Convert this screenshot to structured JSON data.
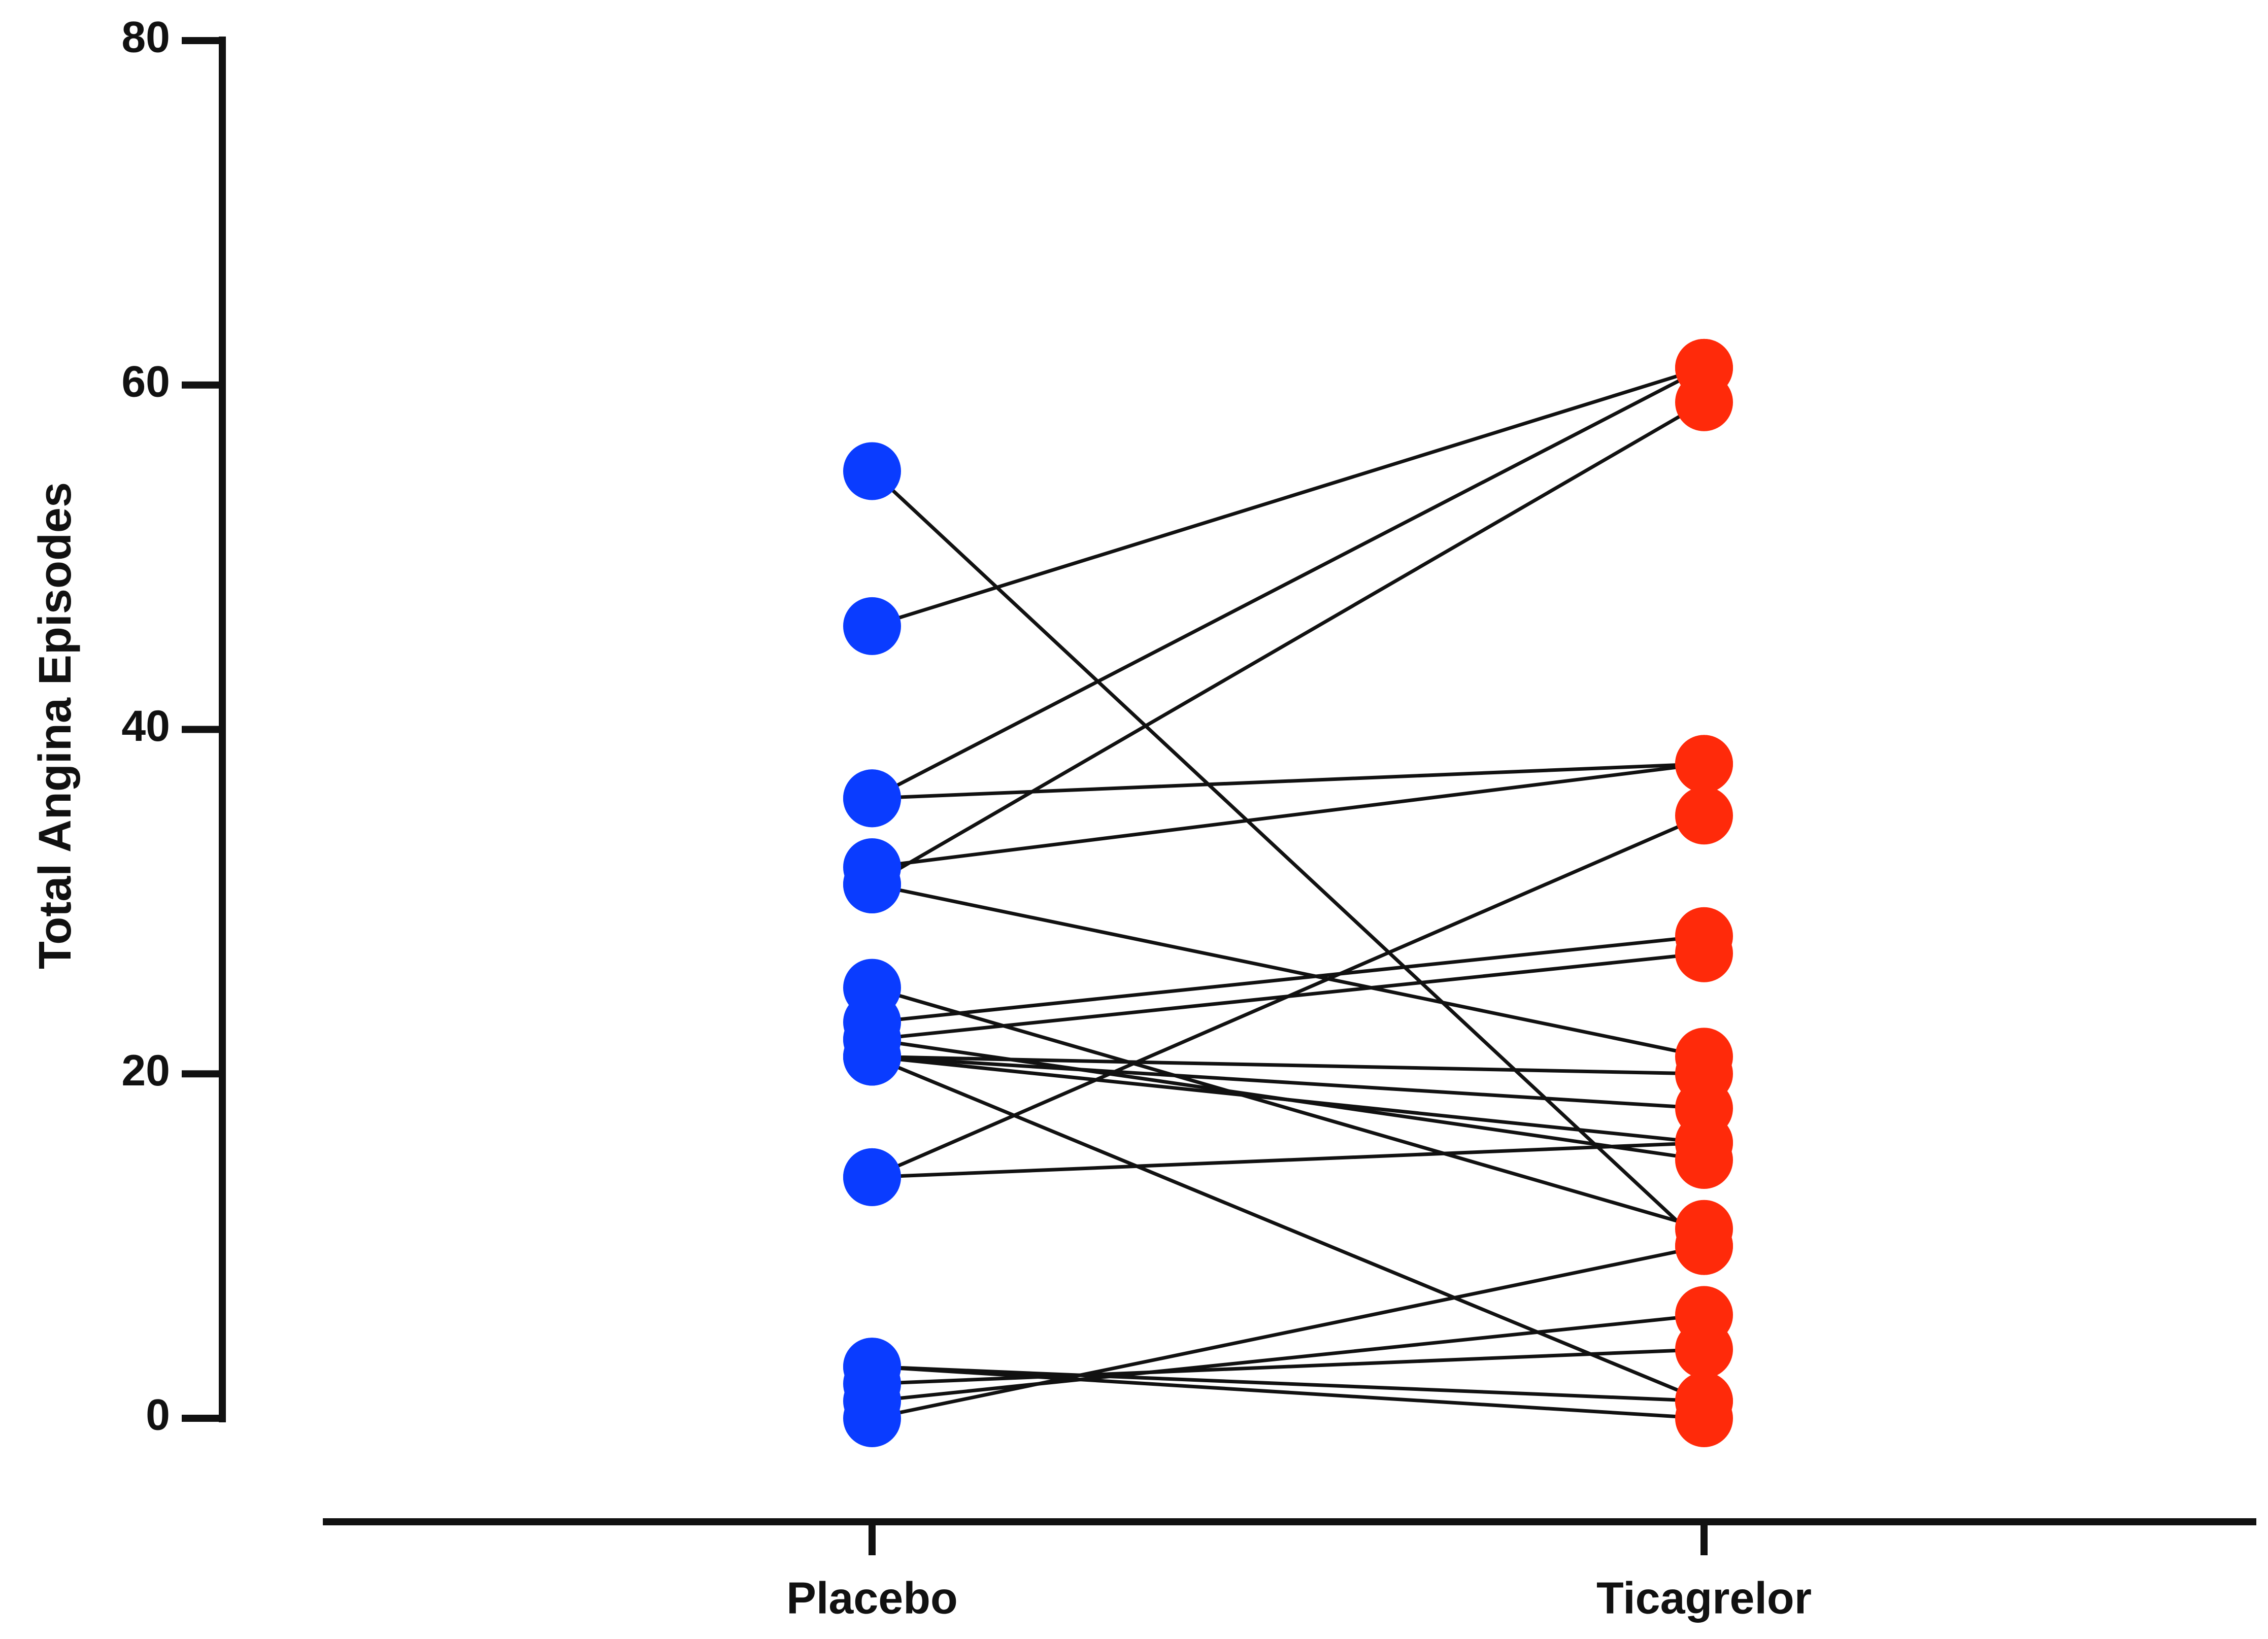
{
  "chart_data": {
    "type": "paired",
    "y_label": "Total Angina Episodes",
    "categories": [
      "Placebo",
      "Ticagrelor"
    ],
    "colors": [
      "#0a3cff",
      "#ff2a0a"
    ],
    "values": [
      [
        55,
        10
      ],
      [
        46,
        61
      ],
      [
        36,
        61
      ],
      [
        36,
        38
      ],
      [
        32,
        38
      ],
      [
        31,
        59
      ],
      [
        31,
        21
      ],
      [
        25,
        11
      ],
      [
        23,
        28
      ],
      [
        22,
        27
      ],
      [
        21,
        20
      ],
      [
        21,
        18
      ],
      [
        21,
        16
      ],
      [
        21,
        1
      ],
      [
        22,
        15
      ],
      [
        14,
        35
      ],
      [
        14,
        16
      ],
      [
        3,
        1
      ],
      [
        2,
        4
      ],
      [
        1,
        6
      ],
      [
        0,
        10
      ],
      [
        3,
        0
      ]
    ],
    "ylim": [
      0,
      80
    ],
    "yticks": [
      0,
      20,
      40,
      60,
      80
    ]
  }
}
